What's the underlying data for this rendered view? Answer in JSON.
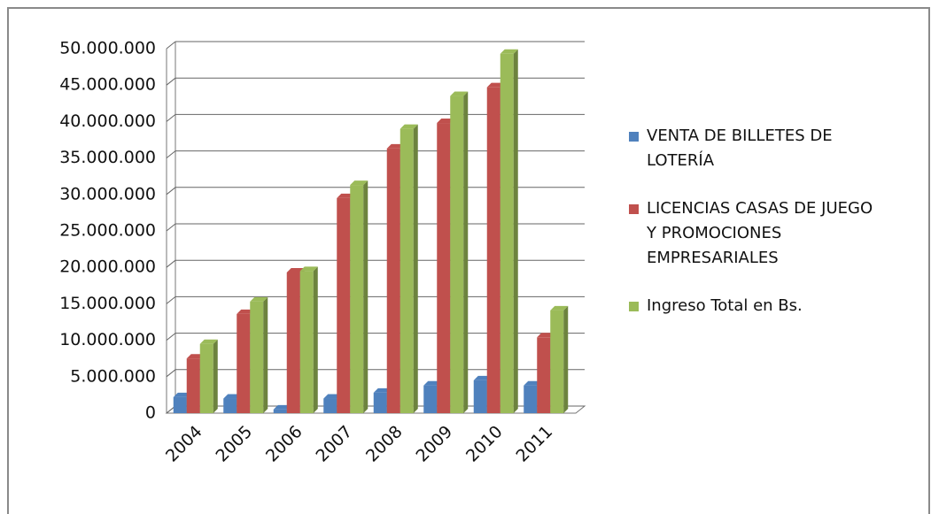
{
  "chart_data": {
    "type": "bar",
    "categories": [
      "2004",
      "2005",
      "2006",
      "2007",
      "2008",
      "2009",
      "2010",
      "2011"
    ],
    "series": [
      {
        "name": "VENTA DE BILLETES DE LOTERÍA",
        "color": "#4f81bd",
        "values": [
          2200000,
          2000000,
          500000,
          2000000,
          2800000,
          3800000,
          4500000,
          3800000
        ]
      },
      {
        "name": "LICENCIAS CASAS DE JUEGO Y PROMOCIONES EMPRESARIALES",
        "color": "#c0504d",
        "values": [
          7500000,
          13600000,
          19300000,
          29500000,
          36300000,
          39800000,
          44700000,
          10400000
        ]
      },
      {
        "name": "Ingreso Total  en Bs.",
        "color": "#9bbb59",
        "values": [
          9500000,
          15300000,
          19500000,
          31300000,
          39000000,
          43500000,
          49300000,
          14100000
        ]
      }
    ],
    "ylim": [
      0,
      50000000
    ],
    "yticks": [
      0,
      {
        "value": 5000000,
        "label": "5.000.000"
      },
      {
        "value": 10000000,
        "label": "10.000.000"
      },
      {
        "value": 15000000,
        "label": "15.000.000"
      },
      {
        "value": 20000000,
        "label": "20.000.000"
      },
      {
        "value": 25000000,
        "label": "25.000.000"
      },
      {
        "value": 30000000,
        "label": "30.000.000"
      },
      {
        "value": 35000000,
        "label": "35.000.000"
      },
      {
        "value": 40000000,
        "label": "40.000.000"
      },
      {
        "value": 45000000,
        "label": "45.000.000"
      },
      {
        "value": 50000000,
        "label": "50.000.000"
      }
    ],
    "grid": true,
    "legend": "right"
  }
}
